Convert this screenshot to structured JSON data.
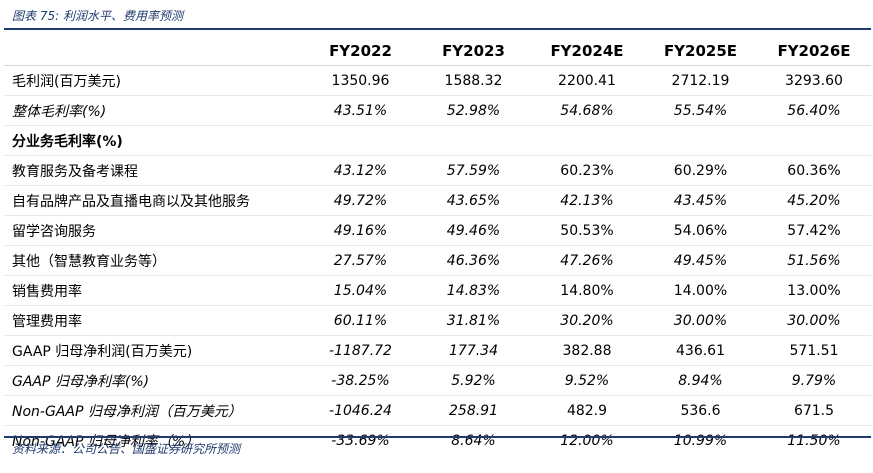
{
  "caption": "图表 75:  利润水平、费用率预测",
  "source": "资料来源：公司公告、国盛证券研究所预测",
  "columns": [
    "FY2022",
    "FY2023",
    "FY2024E",
    "FY2025E",
    "FY2026E"
  ],
  "rows": [
    {
      "label": "毛利润(百万美元)",
      "label_italic": false,
      "values": [
        {
          "v": "1350.96",
          "i": false
        },
        {
          "v": "1588.32",
          "i": false
        },
        {
          "v": "2200.41",
          "i": false
        },
        {
          "v": "2712.19",
          "i": false
        },
        {
          "v": "3293.60",
          "i": false
        }
      ]
    },
    {
      "label": "整体毛利率(%)",
      "label_italic": true,
      "values": [
        {
          "v": "43.51%",
          "i": true
        },
        {
          "v": "52.98%",
          "i": true
        },
        {
          "v": "54.68%",
          "i": true
        },
        {
          "v": "55.54%",
          "i": true
        },
        {
          "v": "56.40%",
          "i": true
        }
      ]
    },
    {
      "label": "分业务毛利率(%)",
      "label_italic": false,
      "label_bold": true,
      "values": []
    },
    {
      "label": "教育服务及备考课程",
      "label_italic": false,
      "values": [
        {
          "v": "43.12%",
          "i": true
        },
        {
          "v": "57.59%",
          "i": true
        },
        {
          "v": "60.23%",
          "i": false
        },
        {
          "v": "60.29%",
          "i": false
        },
        {
          "v": "60.36%",
          "i": false
        }
      ]
    },
    {
      "label": "自有品牌产品及直播电商以及其他服务",
      "label_italic": false,
      "values": [
        {
          "v": "49.72%",
          "i": true
        },
        {
          "v": "43.65%",
          "i": true
        },
        {
          "v": "42.13%",
          "i": true
        },
        {
          "v": "43.45%",
          "i": true
        },
        {
          "v": "45.20%",
          "i": true
        }
      ]
    },
    {
      "label": "留学咨询服务",
      "label_italic": false,
      "values": [
        {
          "v": "49.16%",
          "i": true
        },
        {
          "v": "49.46%",
          "i": true
        },
        {
          "v": "50.53%",
          "i": false
        },
        {
          "v": "54.06%",
          "i": false
        },
        {
          "v": "57.42%",
          "i": false
        }
      ]
    },
    {
      "label": "其他（智慧教育业务等）",
      "label_italic": false,
      "values": [
        {
          "v": "27.57%",
          "i": true
        },
        {
          "v": "46.36%",
          "i": true
        },
        {
          "v": "47.26%",
          "i": true
        },
        {
          "v": "49.45%",
          "i": true
        },
        {
          "v": "51.56%",
          "i": true
        }
      ]
    },
    {
      "label": "销售费用率",
      "label_italic": false,
      "values": [
        {
          "v": "15.04%",
          "i": true
        },
        {
          "v": "14.83%",
          "i": true
        },
        {
          "v": "14.80%",
          "i": false
        },
        {
          "v": "14.00%",
          "i": false
        },
        {
          "v": "13.00%",
          "i": false
        }
      ]
    },
    {
      "label": "管理费用率",
      "label_italic": false,
      "values": [
        {
          "v": "60.11%",
          "i": true
        },
        {
          "v": "31.81%",
          "i": true
        },
        {
          "v": "30.20%",
          "i": true
        },
        {
          "v": "30.00%",
          "i": true
        },
        {
          "v": "30.00%",
          "i": true
        }
      ]
    },
    {
      "label": "GAAP 归母净利润(百万美元)",
      "label_italic": false,
      "values": [
        {
          "v": "-1187.72",
          "i": true
        },
        {
          "v": "177.34",
          "i": true
        },
        {
          "v": "382.88",
          "i": false
        },
        {
          "v": "436.61",
          "i": false
        },
        {
          "v": "571.51",
          "i": false
        }
      ]
    },
    {
      "label": "GAAP 归母净利率(%)",
      "label_italic": true,
      "values": [
        {
          "v": "-38.25%",
          "i": true
        },
        {
          "v": "5.92%",
          "i": true
        },
        {
          "v": "9.52%",
          "i": true
        },
        {
          "v": "8.94%",
          "i": true
        },
        {
          "v": "9.79%",
          "i": true
        }
      ]
    },
    {
      "label": "Non-GAAP 归母净利润（百万美元）",
      "label_italic": true,
      "values": [
        {
          "v": "-1046.24",
          "i": true
        },
        {
          "v": "258.91",
          "i": true
        },
        {
          "v": "482.9",
          "i": false
        },
        {
          "v": "536.6",
          "i": false
        },
        {
          "v": "671.5",
          "i": false
        }
      ]
    },
    {
      "label": "Non-GAAP 归母净利率（%）",
      "label_italic": true,
      "values": [
        {
          "v": "-33.69%",
          "i": true
        },
        {
          "v": "8.64%",
          "i": true
        },
        {
          "v": "12.00%",
          "i": true
        },
        {
          "v": "10.99%",
          "i": true
        },
        {
          "v": "11.50%",
          "i": true
        }
      ]
    }
  ]
}
